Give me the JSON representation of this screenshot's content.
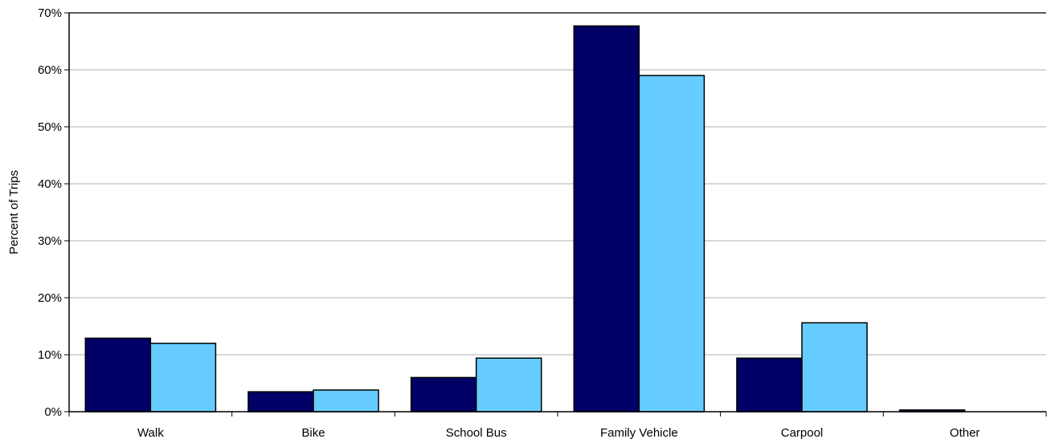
{
  "chart_data": {
    "type": "bar",
    "title": "",
    "xlabel": "",
    "ylabel": "Percent of Trips",
    "ylim": [
      0,
      70
    ],
    "yticks": [
      0,
      10,
      20,
      30,
      40,
      50,
      60,
      70
    ],
    "ytick_labels": [
      "0%",
      "10%",
      "20%",
      "30%",
      "40%",
      "50%",
      "60%",
      "70%"
    ],
    "grid": true,
    "legend": "none",
    "categories": [
      "Walk",
      "Bike",
      "School Bus",
      "Family Vehicle",
      "Carpool",
      "Other"
    ],
    "series": [
      {
        "color": "#000066",
        "values": [
          12.9,
          3.5,
          6.0,
          67.7,
          9.4,
          0.3
        ]
      },
      {
        "color": "#66CCFF",
        "values": [
          12.0,
          3.8,
          9.4,
          59.0,
          15.6,
          0.0
        ]
      }
    ]
  }
}
